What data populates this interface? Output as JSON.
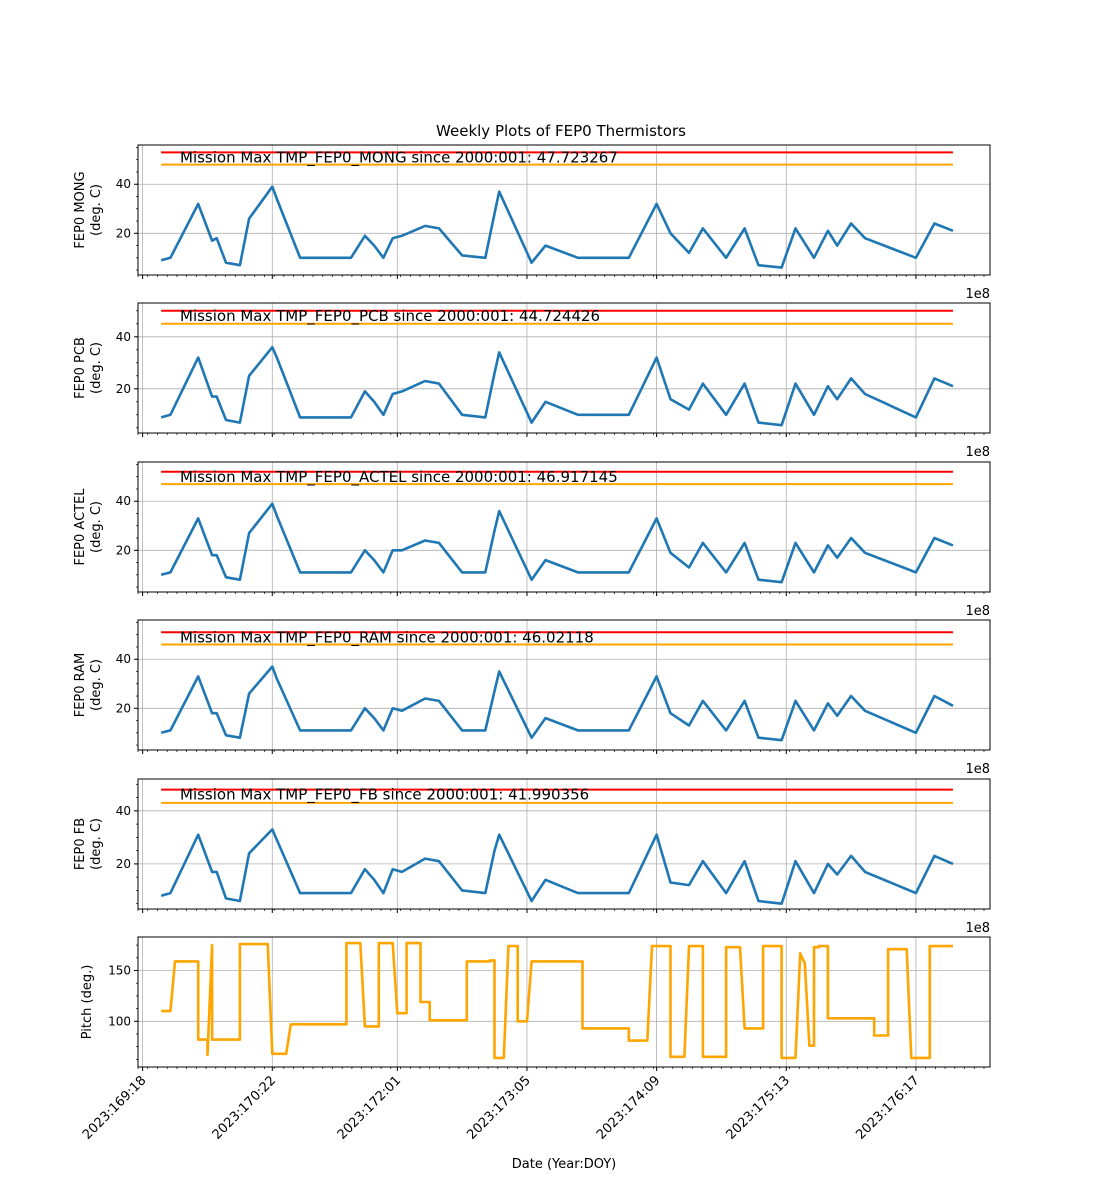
{
  "figure": {
    "title": "Weekly Plots of FEP0 Thermistors",
    "xlabel": "Date (Year:DOY)",
    "x_offset_label": "1e8"
  },
  "chart_data": [
    {
      "type": "line",
      "ylabel": "FEP0 MONG\n(deg. C)",
      "yticks": [
        20,
        40
      ],
      "ylim": [
        3,
        56
      ],
      "annotation": "Mission Max TMP_FEP0_MONG since 2000:001: 47.723267",
      "red_limit": 53,
      "yellow_limit": 48,
      "series": [
        {
          "color": "#1f77b4",
          "x": [
            "2023:169:22",
            "2023:170:00",
            "2023:170:06",
            "2023:170:09",
            "2023:170:10",
            "2023:170:12",
            "2023:170:15",
            "2023:170:17",
            "2023:170:22",
            "2023:170:23",
            "2023:171:04",
            "2023:171:15",
            "2023:171:18",
            "2023:171:20",
            "2023:171:22",
            "2023:172:00",
            "2023:172:02",
            "2023:172:07",
            "2023:172:10",
            "2023:172:15",
            "2023:172:20",
            "2023:172:22",
            "2023:172:23",
            "2023:173:06",
            "2023:173:09",
            "2023:173:16",
            "2023:174:03",
            "2023:174:09",
            "2023:174:12",
            "2023:174:16",
            "2023:174:19",
            "2023:175:00",
            "2023:175:04",
            "2023:175:07",
            "2023:175:12",
            "2023:175:15",
            "2023:175:19",
            "2023:175:22",
            "2023:176:00",
            "2023:176:03",
            "2023:176:06",
            "2023:176:17",
            "2023:176:21",
            "2023:177:01"
          ],
          "y": [
            9,
            10,
            32,
            17,
            18,
            8,
            7,
            26,
            39,
            34,
            10,
            10,
            19,
            15,
            10,
            18,
            19,
            23,
            22,
            11,
            10,
            28,
            37,
            8,
            15,
            10,
            10,
            32,
            20,
            12,
            22,
            10,
            22,
            7,
            6,
            22,
            10,
            21,
            15,
            24,
            18,
            10,
            24,
            21
          ]
        }
      ]
    },
    {
      "type": "line",
      "ylabel": "FEP0 PCB\n(deg. C)",
      "yticks": [
        20,
        40
      ],
      "ylim": [
        3,
        53
      ],
      "annotation": "Mission Max TMP_FEP0_PCB since 2000:001: 44.724426",
      "red_limit": 50,
      "yellow_limit": 45,
      "series": [
        {
          "color": "#1f77b4",
          "x": [
            "2023:169:22",
            "2023:170:00",
            "2023:170:06",
            "2023:170:09",
            "2023:170:10",
            "2023:170:12",
            "2023:170:15",
            "2023:170:17",
            "2023:170:22",
            "2023:170:23",
            "2023:171:04",
            "2023:171:15",
            "2023:171:18",
            "2023:171:20",
            "2023:171:22",
            "2023:172:00",
            "2023:172:02",
            "2023:172:07",
            "2023:172:10",
            "2023:172:15",
            "2023:172:20",
            "2023:172:22",
            "2023:172:23",
            "2023:173:06",
            "2023:173:09",
            "2023:173:16",
            "2023:174:03",
            "2023:174:09",
            "2023:174:12",
            "2023:174:16",
            "2023:174:19",
            "2023:175:00",
            "2023:175:04",
            "2023:175:07",
            "2023:175:12",
            "2023:175:15",
            "2023:175:19",
            "2023:175:22",
            "2023:176:00",
            "2023:176:03",
            "2023:176:06",
            "2023:176:17",
            "2023:176:21",
            "2023:177:01"
          ],
          "y": [
            9,
            10,
            32,
            17,
            17,
            8,
            7,
            25,
            36,
            32,
            9,
            9,
            19,
            15,
            10,
            18,
            19,
            23,
            22,
            10,
            9,
            26,
            34,
            7,
            15,
            10,
            10,
            32,
            16,
            12,
            22,
            10,
            22,
            7,
            6,
            22,
            10,
            21,
            16,
            24,
            18,
            9,
            24,
            21
          ]
        }
      ]
    },
    {
      "type": "line",
      "ylabel": "FEP0 ACTEL\n(deg. C)",
      "yticks": [
        20,
        40
      ],
      "ylim": [
        3,
        56
      ],
      "annotation": "Mission Max TMP_FEP0_ACTEL since 2000:001: 46.917145",
      "red_limit": 52,
      "yellow_limit": 47,
      "series": [
        {
          "color": "#1f77b4",
          "x": [
            "2023:169:22",
            "2023:170:00",
            "2023:170:06",
            "2023:170:09",
            "2023:170:10",
            "2023:170:12",
            "2023:170:15",
            "2023:170:17",
            "2023:170:22",
            "2023:170:23",
            "2023:171:04",
            "2023:171:15",
            "2023:171:18",
            "2023:171:20",
            "2023:171:22",
            "2023:172:00",
            "2023:172:02",
            "2023:172:07",
            "2023:172:10",
            "2023:172:15",
            "2023:172:20",
            "2023:172:22",
            "2023:172:23",
            "2023:173:06",
            "2023:173:09",
            "2023:173:16",
            "2023:174:03",
            "2023:174:09",
            "2023:174:12",
            "2023:174:16",
            "2023:174:19",
            "2023:175:00",
            "2023:175:04",
            "2023:175:07",
            "2023:175:12",
            "2023:175:15",
            "2023:175:19",
            "2023:175:22",
            "2023:176:00",
            "2023:176:03",
            "2023:176:06",
            "2023:176:17",
            "2023:176:21",
            "2023:177:01"
          ],
          "y": [
            10,
            11,
            33,
            18,
            18,
            9,
            8,
            27,
            39,
            34,
            11,
            11,
            20,
            16,
            11,
            20,
            20,
            24,
            23,
            11,
            11,
            28,
            36,
            8,
            16,
            11,
            11,
            33,
            19,
            13,
            23,
            11,
            23,
            8,
            7,
            23,
            11,
            22,
            17,
            25,
            19,
            11,
            25,
            22
          ]
        }
      ]
    },
    {
      "type": "line",
      "ylabel": "FEP0 RAM\n(deg. C)",
      "yticks": [
        20,
        40
      ],
      "ylim": [
        3,
        56
      ],
      "annotation": "Mission Max TMP_FEP0_RAM since 2000:001: 46.02118",
      "red_limit": 51,
      "yellow_limit": 46,
      "series": [
        {
          "color": "#1f77b4",
          "x": [
            "2023:169:22",
            "2023:170:00",
            "2023:170:06",
            "2023:170:09",
            "2023:170:10",
            "2023:170:12",
            "2023:170:15",
            "2023:170:17",
            "2023:170:22",
            "2023:170:23",
            "2023:171:04",
            "2023:171:15",
            "2023:171:18",
            "2023:171:20",
            "2023:171:22",
            "2023:172:00",
            "2023:172:02",
            "2023:172:07",
            "2023:172:10",
            "2023:172:15",
            "2023:172:20",
            "2023:172:22",
            "2023:172:23",
            "2023:173:06",
            "2023:173:09",
            "2023:173:16",
            "2023:174:03",
            "2023:174:09",
            "2023:174:12",
            "2023:174:16",
            "2023:174:19",
            "2023:175:00",
            "2023:175:04",
            "2023:175:07",
            "2023:175:12",
            "2023:175:15",
            "2023:175:19",
            "2023:175:22",
            "2023:176:00",
            "2023:176:03",
            "2023:176:06",
            "2023:176:17",
            "2023:176:21",
            "2023:177:01"
          ],
          "y": [
            10,
            11,
            33,
            18,
            18,
            9,
            8,
            26,
            37,
            32,
            11,
            11,
            20,
            16,
            11,
            20,
            19,
            24,
            23,
            11,
            11,
            27,
            35,
            8,
            16,
            11,
            11,
            33,
            18,
            13,
            23,
            11,
            23,
            8,
            7,
            23,
            11,
            22,
            17,
            25,
            19,
            10,
            25,
            21
          ]
        }
      ]
    },
    {
      "type": "line",
      "ylabel": "FEP0 FB\n(deg. C)",
      "yticks": [
        20,
        40
      ],
      "ylim": [
        3,
        52
      ],
      "annotation": "Mission Max TMP_FEP0_FB since 2000:001: 41.990356",
      "red_limit": 48,
      "yellow_limit": 43,
      "series": [
        {
          "color": "#1f77b4",
          "x": [
            "2023:169:22",
            "2023:170:00",
            "2023:170:06",
            "2023:170:09",
            "2023:170:10",
            "2023:170:12",
            "2023:170:15",
            "2023:170:17",
            "2023:170:22",
            "2023:170:23",
            "2023:171:04",
            "2023:171:15",
            "2023:171:18",
            "2023:171:20",
            "2023:171:22",
            "2023:172:00",
            "2023:172:02",
            "2023:172:07",
            "2023:172:10",
            "2023:172:15",
            "2023:172:20",
            "2023:172:22",
            "2023:172:23",
            "2023:173:06",
            "2023:173:09",
            "2023:173:16",
            "2023:174:03",
            "2023:174:09",
            "2023:174:12",
            "2023:174:16",
            "2023:174:19",
            "2023:175:00",
            "2023:175:04",
            "2023:175:07",
            "2023:175:12",
            "2023:175:15",
            "2023:175:19",
            "2023:175:22",
            "2023:176:00",
            "2023:176:03",
            "2023:176:06",
            "2023:176:17",
            "2023:176:21",
            "2023:177:01"
          ],
          "y": [
            8,
            9,
            31,
            17,
            17,
            7,
            6,
            24,
            33,
            29,
            9,
            9,
            18,
            14,
            9,
            18,
            17,
            22,
            21,
            10,
            9,
            25,
            31,
            6,
            14,
            9,
            9,
            31,
            13,
            12,
            21,
            9,
            21,
            6,
            5,
            21,
            9,
            20,
            16,
            23,
            17,
            9,
            23,
            20
          ]
        }
      ]
    },
    {
      "type": "line",
      "ylabel": "Pitch (deg.)",
      "yticks": [
        100,
        150
      ],
      "ylim": [
        55,
        183
      ],
      "series": [
        {
          "color": "#ffa500",
          "x": [
            "2023:169:22",
            "2023:170:00",
            "2023:170:01",
            "2023:170:06",
            "2023:170:06",
            "2023:170:08",
            "2023:170:08",
            "2023:170:09",
            "2023:170:09",
            "2023:170:10",
            "2023:170:10",
            "2023:170:15",
            "2023:170:15",
            "2023:170:21",
            "2023:170:22",
            "2023:171:01",
            "2023:171:02",
            "2023:171:14",
            "2023:171:14",
            "2023:171:17",
            "2023:171:18",
            "2023:171:21",
            "2023:171:21",
            "2023:172:00",
            "2023:172:01",
            "2023:172:03",
            "2023:172:03",
            "2023:172:06",
            "2023:172:06",
            "2023:172:08",
            "2023:172:08",
            "2023:172:16",
            "2023:172:16",
            "2023:172:21",
            "2023:172:21",
            "2023:172:22",
            "2023:172:22",
            "2023:173:00",
            "2023:173:01",
            "2023:173:03",
            "2023:173:03",
            "2023:173:05",
            "2023:173:06",
            "2023:173:17",
            "2023:173:17",
            "2023:174:03",
            "2023:174:03",
            "2023:174:07",
            "2023:174:08",
            "2023:174:12",
            "2023:174:12",
            "2023:174:15",
            "2023:174:16",
            "2023:174:19",
            "2023:174:19",
            "2023:175:00",
            "2023:175:00",
            "2023:175:03",
            "2023:175:04",
            "2023:175:08",
            "2023:175:08",
            "2023:175:12",
            "2023:175:12",
            "2023:175:15",
            "2023:175:16",
            "2023:175:17",
            "2023:175:18",
            "2023:175:19",
            "2023:175:19",
            "2023:175:20",
            "2023:175:20",
            "2023:175:22",
            "2023:175:22",
            "2023:176:08",
            "2023:176:08",
            "2023:176:11",
            "2023:176:11",
            "2023:176:15",
            "2023:176:16",
            "2023:176:20",
            "2023:176:20",
            "2023:177:01"
          ],
          "y": [
            110,
            110,
            159,
            159,
            82,
            82,
            67,
            175,
            82,
            82,
            82,
            82,
            176,
            176,
            68,
            68,
            97,
            97,
            177,
            177,
            95,
            95,
            177,
            177,
            108,
            108,
            177,
            177,
            119,
            119,
            101,
            101,
            159,
            159,
            160,
            160,
            64,
            64,
            174,
            174,
            100,
            100,
            159,
            159,
            93,
            93,
            81,
            81,
            174,
            174,
            65,
            65,
            174,
            174,
            65,
            65,
            173,
            173,
            93,
            93,
            174,
            174,
            64,
            64,
            167,
            157,
            76,
            76,
            173,
            173,
            174,
            174,
            103,
            103,
            86,
            86,
            171,
            171,
            64,
            64,
            174,
            174
          ]
        }
      ]
    }
  ],
  "x_axis": {
    "tick_labels": [
      "2023:169:18",
      "2023:170:22",
      "2023:172:01",
      "2023:173:05",
      "2023:174:09",
      "2023:175:13",
      "2023:176:17"
    ],
    "xlim": [
      "2023:169:17",
      "2023:177:09"
    ]
  }
}
